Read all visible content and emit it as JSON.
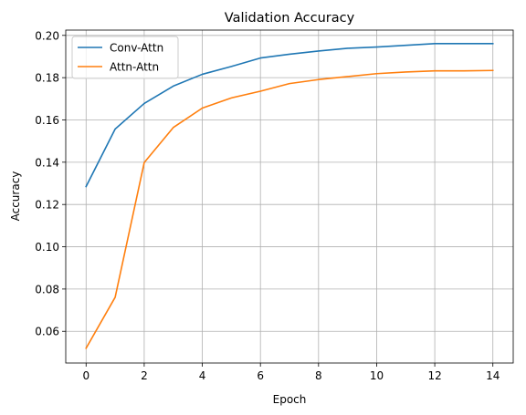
{
  "chart_data": {
    "type": "line",
    "title": "Validation Accuracy",
    "xlabel": "Epoch",
    "ylabel": "Accuracy",
    "xlim": [
      -0.7,
      14.7
    ],
    "ylim": [
      0.045,
      0.2025
    ],
    "xticks": [
      0,
      2,
      4,
      6,
      8,
      10,
      12,
      14
    ],
    "xtick_labels": [
      "0",
      "2",
      "4",
      "6",
      "8",
      "10",
      "12",
      "14"
    ],
    "yticks": [
      0.06,
      0.08,
      0.1,
      0.12,
      0.14,
      0.16,
      0.18,
      0.2
    ],
    "ytick_labels": [
      "0.06",
      "0.08",
      "0.10",
      "0.12",
      "0.14",
      "0.16",
      "0.18",
      "0.20"
    ],
    "grid": true,
    "legend_position": "top-left",
    "x": [
      0,
      1,
      2,
      3,
      4,
      5,
      6,
      7,
      8,
      9,
      10,
      11,
      12,
      13,
      14
    ],
    "series": [
      {
        "name": "Conv-Attn",
        "color": "#1f77b4",
        "values": [
          0.1285,
          0.1557,
          0.1678,
          0.176,
          0.1816,
          0.1853,
          0.1893,
          0.1911,
          0.1926,
          0.1939,
          0.1945,
          0.1953,
          0.1961,
          0.1961,
          0.1961
        ]
      },
      {
        "name": "Attn-Attn",
        "color": "#ff7f0e",
        "values": [
          0.052,
          0.0761,
          0.1398,
          0.1564,
          0.1656,
          0.1704,
          0.1736,
          0.1772,
          0.1791,
          0.1805,
          0.1819,
          0.1827,
          0.1832,
          0.1832,
          0.1834
        ]
      }
    ]
  }
}
